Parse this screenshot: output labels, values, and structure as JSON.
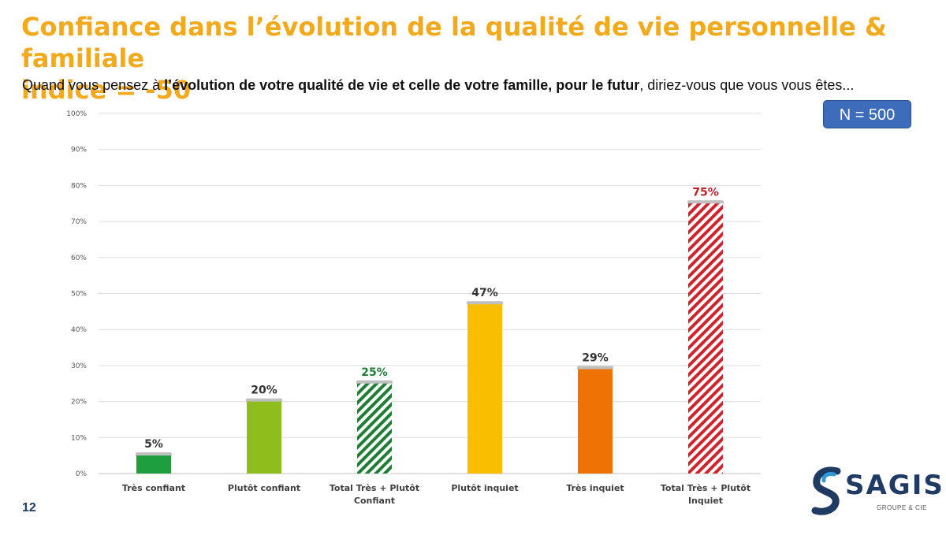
{
  "header": {
    "title_line1": "Confiance dans l’évolution de la qualité de vie personnelle & familiale",
    "title_line2": "indice = -50",
    "question_pre": "Quand vous pensez à ",
    "question_bold": "l’évolution de votre qualité de vie et celle de votre famille, pour le futur",
    "question_post": ", diriez-vous que vous vous êtes..."
  },
  "sample_badge": "N = 500",
  "page_number": "12",
  "logo": {
    "name": "SAGIS",
    "subtitle": "GROUPE & CIE"
  },
  "colors": {
    "title": "#F2A91B",
    "tres_confiant": "#1E9E3F",
    "plutot_confiant": "#8EBD1C",
    "total_confiant": "#1E7E34",
    "plutot_inquiet": "#F9BE00",
    "tres_inquiet": "#EE7304",
    "total_inquiet": "#D0242C",
    "badge": "#3D6DBA"
  },
  "chart_data": {
    "type": "bar",
    "categories": [
      [
        "Très confiant"
      ],
      [
        "Plutôt confiant"
      ],
      [
        "Total Très + Plutôt",
        "Confiant"
      ],
      [
        "Plutôt inquiet"
      ],
      [
        "Très inquiet"
      ],
      [
        "Total Très + Plutôt",
        "Inquiet"
      ]
    ],
    "values": [
      5,
      20,
      25,
      47,
      29,
      75
    ],
    "labels": [
      "5%",
      "20%",
      "25%",
      "47%",
      "29%",
      "75%"
    ],
    "bar_styles": [
      "solid",
      "solid",
      "hatched",
      "solid",
      "solid",
      "hatched"
    ],
    "bar_colors": [
      "#1E9E3F",
      "#8EBD1C",
      "#1E7E34",
      "#F9BE00",
      "#EE7304",
      "#D0242C"
    ],
    "label_colors": [
      "#333333",
      "#333333",
      "#1E7E34",
      "#333333",
      "#333333",
      "#C0202A"
    ],
    "ylim": [
      0,
      100
    ],
    "yticks": [
      "0%",
      "10%",
      "20%",
      "30%",
      "40%",
      "50%",
      "60%",
      "70%",
      "80%",
      "90%",
      "100%"
    ],
    "grid": true,
    "xlabel": "",
    "ylabel": ""
  }
}
